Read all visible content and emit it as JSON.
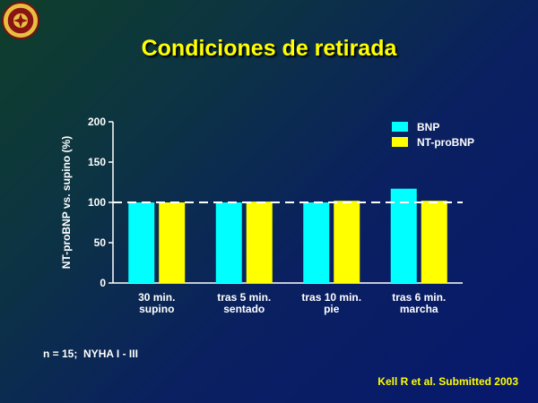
{
  "title": "Condiciones de retirada",
  "footnote": "n = 15;  NYHA I - III",
  "citation": "Kell R et al. Submitted 2003",
  "colors": {
    "title": "#ffff00",
    "bnp": "#00ffff",
    "ntprobnp": "#ffff00",
    "axis": "#ffffff"
  },
  "chart_data": {
    "type": "bar",
    "title": "",
    "xlabel": "",
    "ylabel": "NT-proBNP vs. supino (%)",
    "ylim": [
      0,
      200
    ],
    "yticks": [
      0,
      50,
      100,
      150,
      200
    ],
    "reference_line": 100,
    "categories": [
      [
        "30 min.",
        "supino"
      ],
      [
        "tras 5 min.",
        "sentado"
      ],
      [
        "tras 10 min.",
        "pie"
      ],
      [
        "tras 6 min.",
        "marcha"
      ]
    ],
    "series": [
      {
        "name": "BNP",
        "color": "#00ffff",
        "values": [
          100,
          100,
          100,
          117
        ]
      },
      {
        "name": "NT-proBNP",
        "color": "#ffff00",
        "values": [
          100,
          101,
          102,
          102
        ]
      }
    ],
    "legend_position": "top-right",
    "grid": false
  }
}
